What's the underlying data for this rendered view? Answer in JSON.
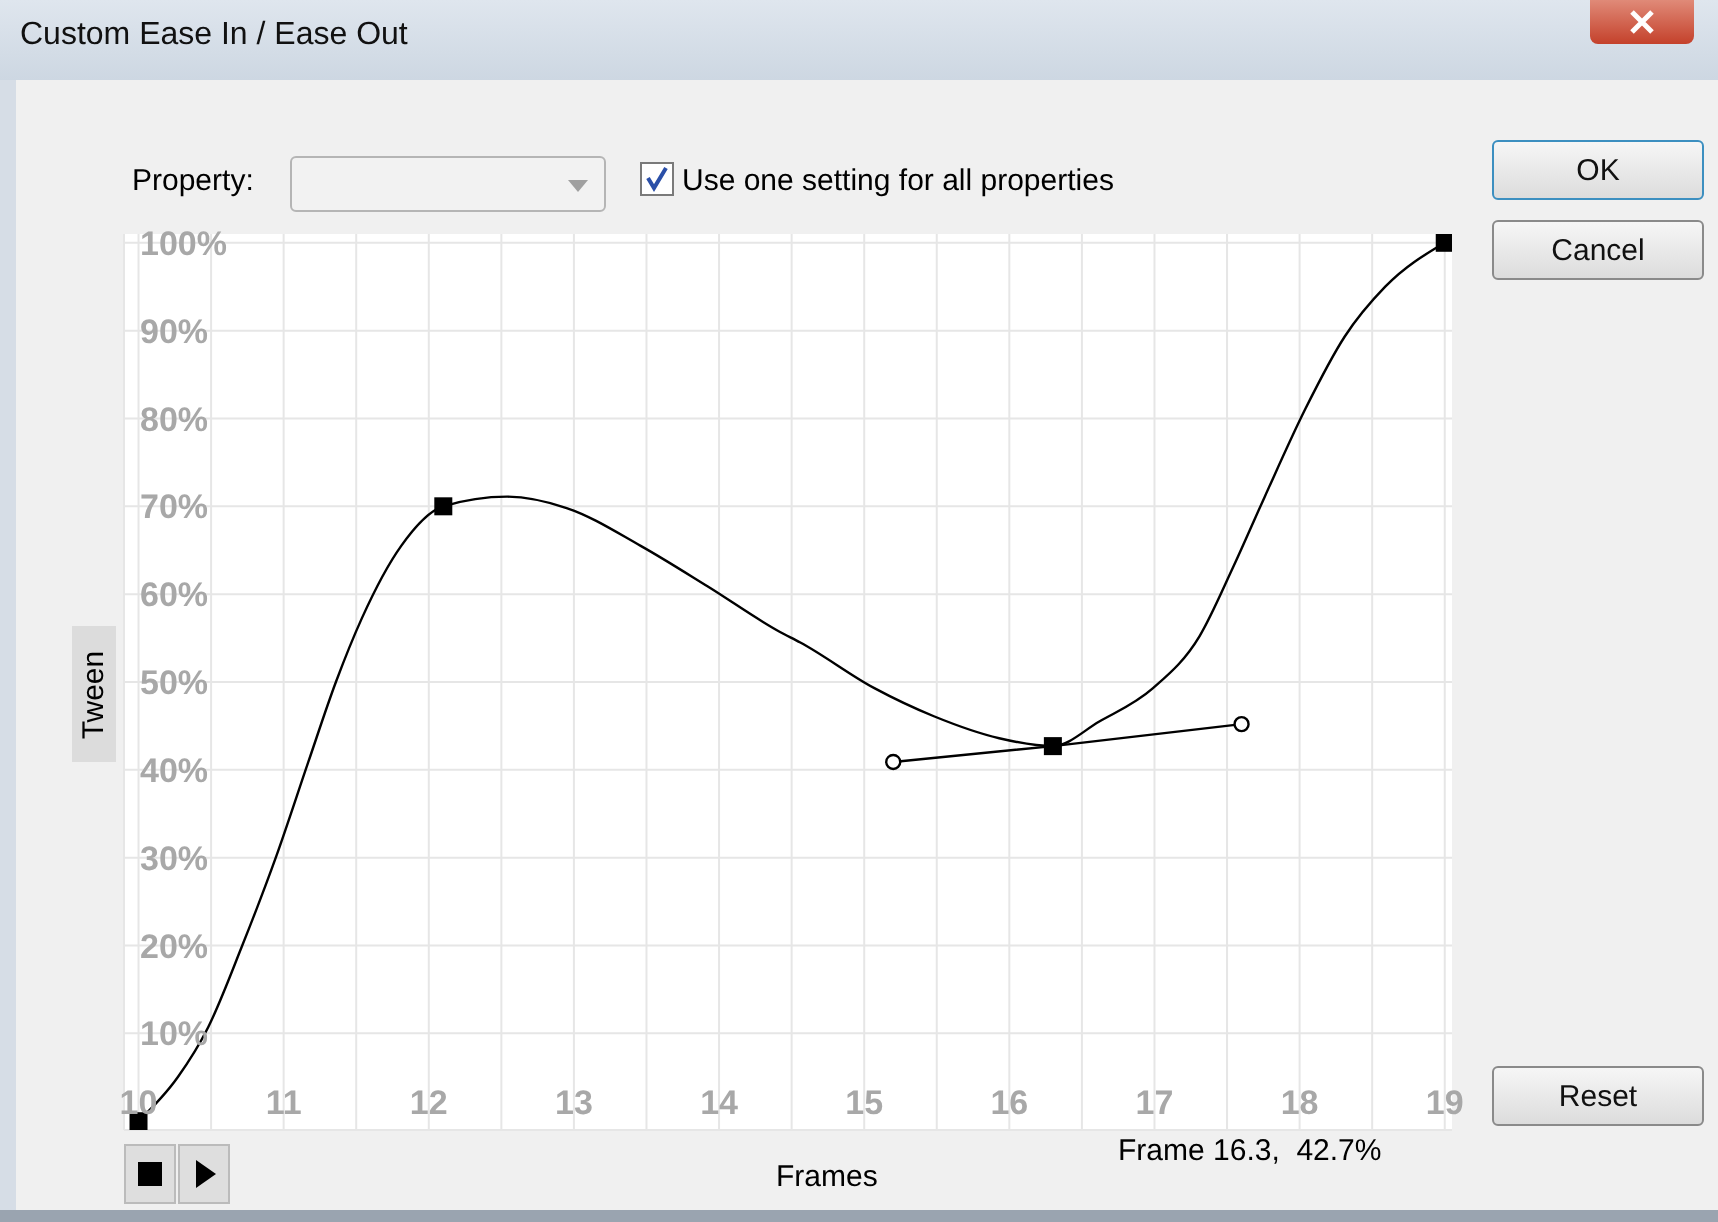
{
  "chart_data": {
    "type": "line",
    "title": "Custom Ease In / Ease Out",
    "xlabel": "Frames",
    "ylabel": "Tween",
    "xlim": [
      9.9,
      19.05
    ],
    "ylim": [
      -1,
      101
    ],
    "xticks": [
      10,
      {
        "value": 10.5,
        "label": null
      },
      11,
      {
        "value": 11.5,
        "label": null
      },
      12,
      {
        "value": 12.5,
        "label": null
      },
      13,
      {
        "value": 13.5,
        "label": null
      },
      14,
      {
        "value": 14.5,
        "label": null
      },
      15,
      {
        "value": 15.5,
        "label": null
      },
      16,
      {
        "value": 16.5,
        "label": null
      },
      17,
      {
        "value": 17.5,
        "label": null
      },
      18,
      {
        "value": 18.5,
        "label": null
      },
      19
    ],
    "yticks": [
      {
        "value": 10,
        "label": "10%"
      },
      {
        "value": 20,
        "label": "20%"
      },
      {
        "value": 30,
        "label": "30%"
      },
      {
        "value": 40,
        "label": "40%"
      },
      {
        "value": 50,
        "label": "50%"
      },
      {
        "value": 60,
        "label": "60%"
      },
      {
        "value": 70,
        "label": "70%"
      },
      {
        "value": 80,
        "label": "80%"
      },
      {
        "value": 90,
        "label": "90%"
      },
      {
        "value": 100,
        "label": "100%"
      }
    ],
    "grid": true,
    "legend": false,
    "series": [
      {
        "type": "line",
        "color": "#000000",
        "marker": "none",
        "x": [
          10,
          10.27,
          10.48,
          10.71,
          10.95,
          11.17,
          11.36,
          11.54,
          11.81,
          12.1,
          12.54,
          12.95,
          13.46,
          13.92,
          14.42,
          14.56,
          15.07,
          15.48,
          15.93,
          16.3,
          16.62,
          16.99,
          17.31,
          17.54,
          17.76,
          18.04,
          18.31,
          18.59,
          19
        ],
        "values": [
          0,
          5,
          10.7,
          19.8,
          30.2,
          40.9,
          50,
          57.3,
          65.5,
          70,
          71.1,
          69.8,
          65.5,
          60.9,
          55.7,
          54.5,
          49.3,
          46.1,
          43.6,
          42.7,
          45.5,
          49.3,
          55.2,
          63,
          71.1,
          81.1,
          89.3,
          95,
          100
        ]
      },
      {
        "type": "line",
        "color": "#000000",
        "marker": "circle",
        "x": [
          15.2,
          16.3,
          17.6
        ],
        "values": [
          40.9,
          42.7,
          45.2
        ]
      },
      {
        "type": "scatter",
        "color": "#000000",
        "marker": "square",
        "x": [
          10,
          12.1,
          16.3,
          19
        ],
        "values": [
          0,
          70,
          42.7,
          100
        ]
      }
    ],
    "annotations": [
      "Property:",
      "Use one setting for all properties",
      "OK",
      "Cancel",
      "Reset",
      "Frame 16.3,  42.7%"
    ]
  }
}
